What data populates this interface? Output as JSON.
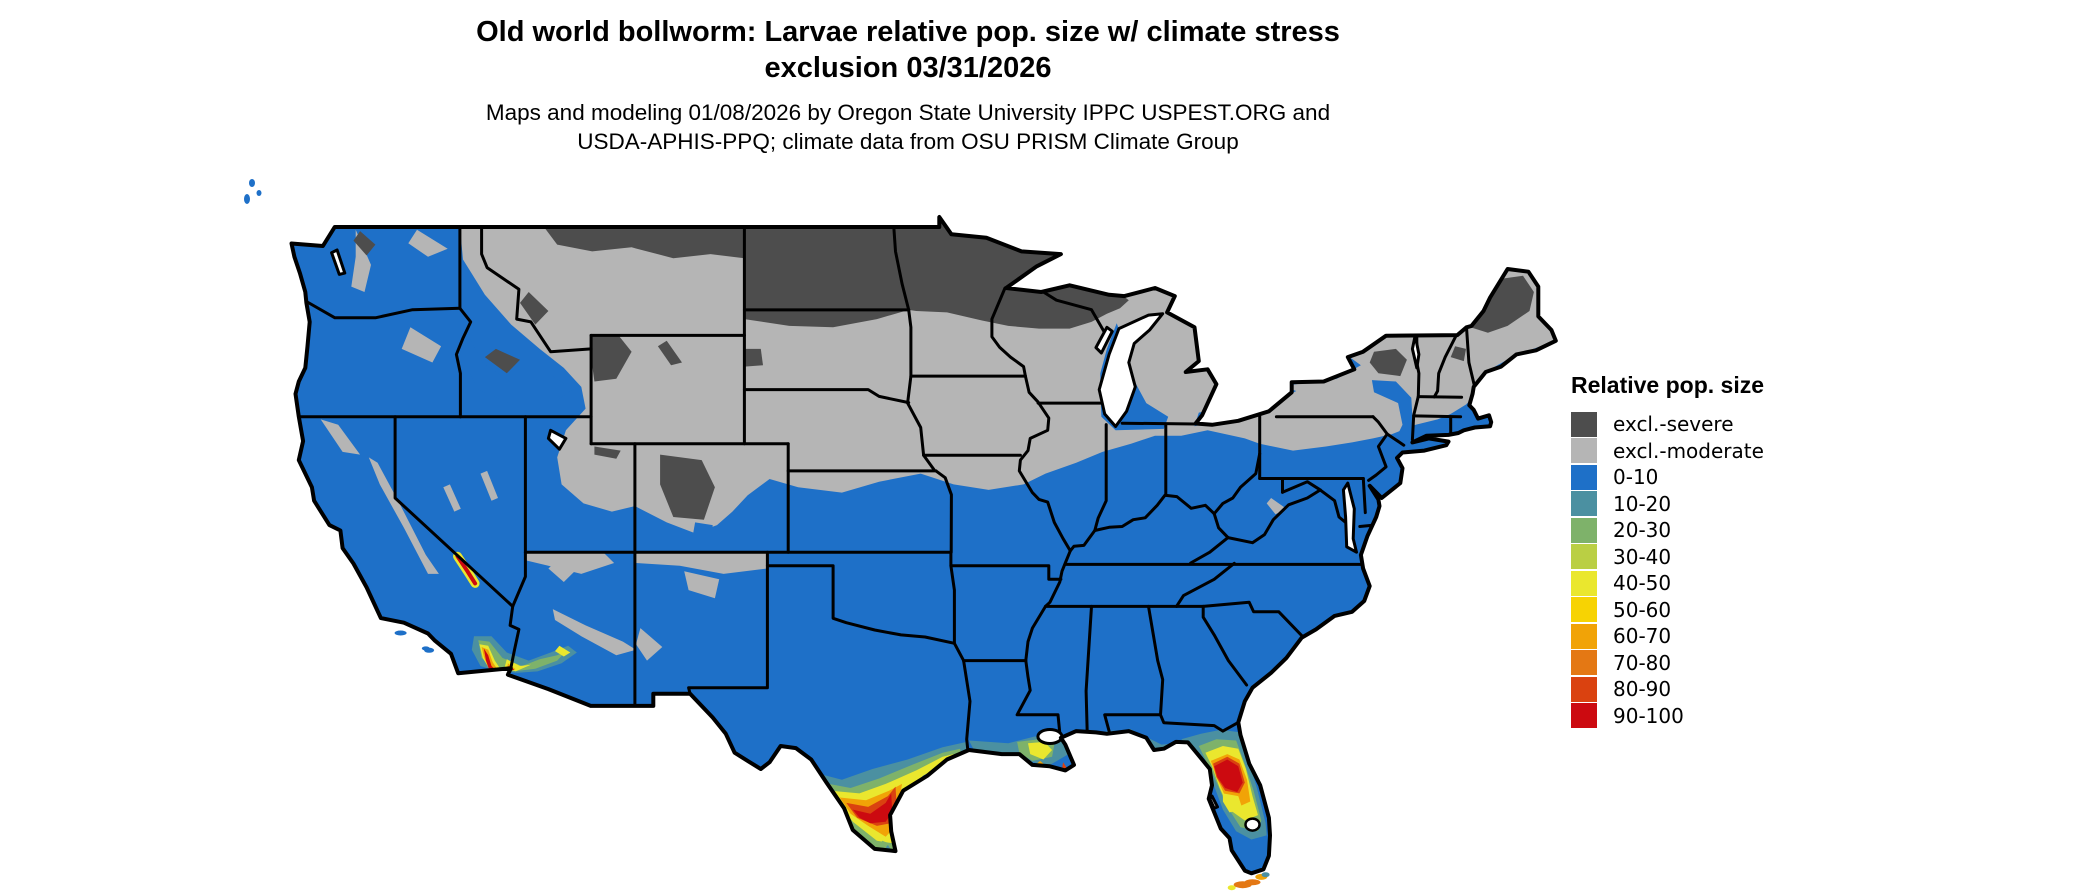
{
  "header": {
    "title_line1": "Old world bollworm: Larvae relative pop. size w/ climate stress",
    "title_line2": "exclusion 03/31/2026",
    "subtitle_line1": "Maps and modeling 01/08/2026 by Oregon State University IPPC USPEST.ORG and",
    "subtitle_line2": "USDA-APHIS-PPQ; climate data from OSU PRISM Climate Group"
  },
  "legend": {
    "title": "Relative pop. size",
    "items": [
      {
        "label": "excl.-severe",
        "color": "#4d4d4d"
      },
      {
        "label": "excl.-moderate",
        "color": "#b5b5b5"
      },
      {
        "label": "0-10",
        "color": "#1e70c8"
      },
      {
        "label": "10-20",
        "color": "#4b90a1"
      },
      {
        "label": "20-30",
        "color": "#7eb26a"
      },
      {
        "label": "30-40",
        "color": "#bacf44"
      },
      {
        "label": "40-50",
        "color": "#eae72e"
      },
      {
        "label": "50-60",
        "color": "#f7d303"
      },
      {
        "label": "60-70",
        "color": "#f1a307"
      },
      {
        "label": "70-80",
        "color": "#e47814"
      },
      {
        "label": "80-90",
        "color": "#da4210"
      },
      {
        "label": "90-100",
        "color": "#cc0a10"
      }
    ]
  },
  "map": {
    "palette": {
      "excl_severe": "#4d4d4d",
      "excl_moderate": "#b5b5b5",
      "r0": "#1e70c8",
      "r10": "#4b90a1",
      "r20": "#7eb26a",
      "r30": "#bacf44",
      "r40": "#eae72e",
      "r50": "#f7d303",
      "r60": "#f1a307",
      "r70": "#e47814",
      "r80": "#da4210",
      "r90": "#cc0a10",
      "border": "#000000",
      "water": "#ffffff"
    }
  }
}
